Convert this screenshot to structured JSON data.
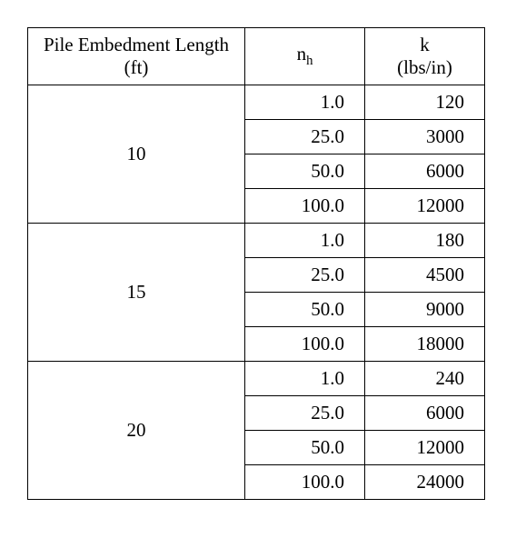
{
  "headers": {
    "embedment": "Pile Embedment Length (ft)",
    "nh_main": "n",
    "nh_sub": "h",
    "k_line1": "k",
    "k_line2": "(lbs/in)"
  },
  "groups": [
    {
      "embedment": "10",
      "rows": [
        {
          "nh": "1.0",
          "k": "120"
        },
        {
          "nh": "25.0",
          "k": "3000"
        },
        {
          "nh": "50.0",
          "k": "6000"
        },
        {
          "nh": "100.0",
          "k": "12000"
        }
      ]
    },
    {
      "embedment": "15",
      "rows": [
        {
          "nh": "1.0",
          "k": "180"
        },
        {
          "nh": "25.0",
          "k": "4500"
        },
        {
          "nh": "50.0",
          "k": "9000"
        },
        {
          "nh": "100.0",
          "k": "18000"
        }
      ]
    },
    {
      "embedment": "20",
      "rows": [
        {
          "nh": "1.0",
          "k": "240"
        },
        {
          "nh": "25.0",
          "k": "6000"
        },
        {
          "nh": "50.0",
          "k": "12000"
        },
        {
          "nh": "100.0",
          "k": "24000"
        }
      ]
    }
  ]
}
